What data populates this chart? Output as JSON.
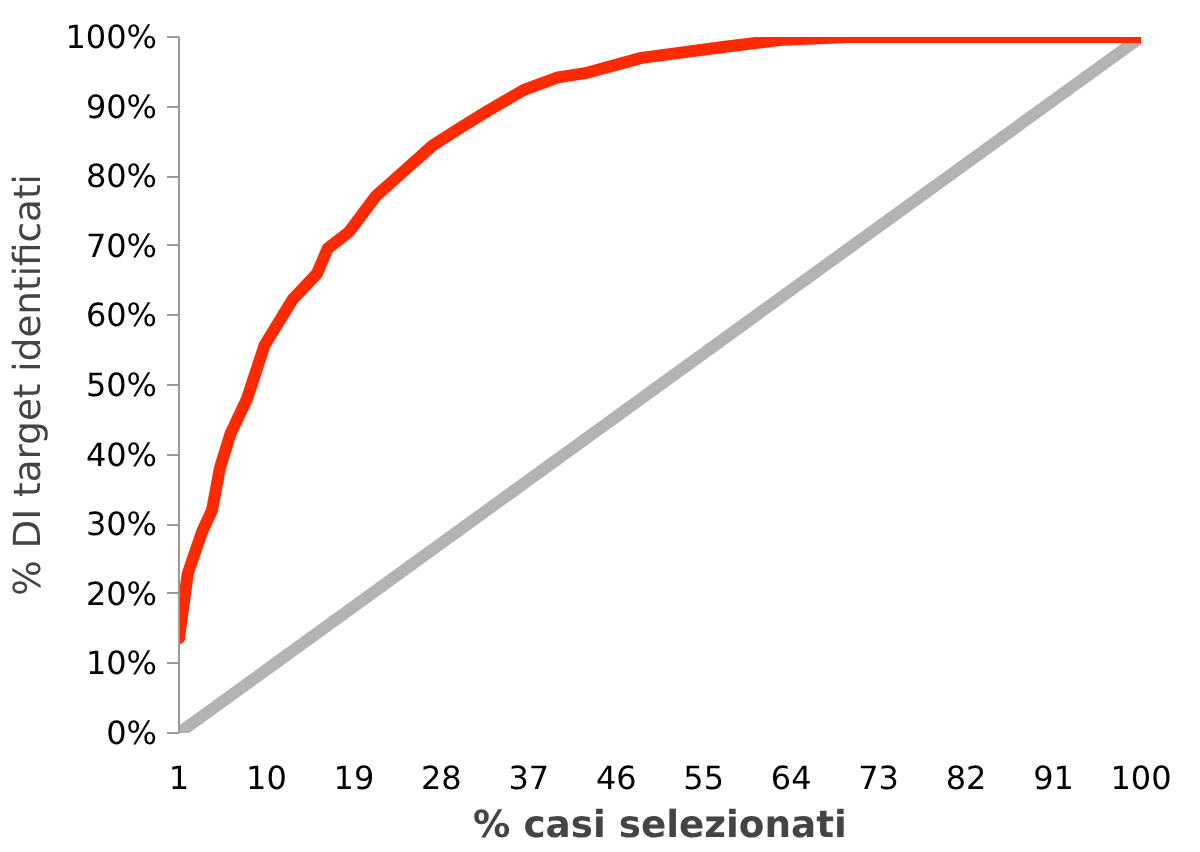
{
  "chart_data": {
    "type": "line",
    "xlabel": "% casi selezionati",
    "ylabel": "% DI target identificati",
    "xlim": [
      1,
      100
    ],
    "xticks": [
      1,
      10,
      19,
      28,
      37,
      46,
      55,
      64,
      73,
      82,
      91,
      100
    ],
    "ylim": [
      0,
      100
    ],
    "yticks": [
      {
        "value": 0,
        "label": "0%"
      },
      {
        "value": 10,
        "label": "10%"
      },
      {
        "value": 20,
        "label": "20%"
      },
      {
        "value": 30,
        "label": "30%"
      },
      {
        "value": 40,
        "label": "40%"
      },
      {
        "value": 50,
        "label": "50%"
      },
      {
        "value": 60,
        "label": "60%"
      },
      {
        "value": 70,
        "label": "70%"
      },
      {
        "value": 80,
        "label": "80%"
      },
      {
        "value": 90,
        "label": "90%"
      },
      {
        "value": 100,
        "label": "100%"
      }
    ],
    "grid": false,
    "line_style": "solid",
    "series": [
      {
        "color": "#b3b3b3",
        "x": [
          1,
          100
        ],
        "values": [
          0,
          100
        ]
      },
      {
        "color": "#ff2a00",
        "x": [
          1,
          1.9,
          3.4,
          4.4,
          5.2,
          6.3,
          8,
          9.8,
          12.7,
          15.2,
          16.3,
          18.5,
          21.3,
          24.2,
          27.1,
          30,
          32.9,
          36.5,
          40,
          42.8,
          48.6,
          57.2,
          63,
          70,
          80,
          90,
          100
        ],
        "values": [
          13.6,
          22.9,
          29,
          32,
          38,
          43,
          48,
          55.7,
          62.3,
          66,
          69.6,
          72,
          77.2,
          80.8,
          84.4,
          87,
          89.5,
          92.4,
          94.2,
          94.8,
          97,
          98.6,
          99.6,
          100,
          100,
          100,
          100
        ]
      }
    ]
  }
}
